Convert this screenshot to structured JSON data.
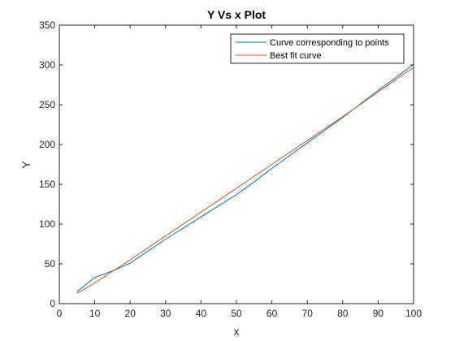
{
  "chart_data": {
    "type": "line",
    "title": "Y Vs x Plot",
    "xlabel": "x",
    "ylabel": "Y",
    "xlim": [
      0,
      100
    ],
    "ylim": [
      0,
      350
    ],
    "xticks": [
      0,
      10,
      20,
      30,
      40,
      50,
      60,
      70,
      80,
      90,
      100
    ],
    "yticks": [
      0,
      50,
      100,
      150,
      200,
      250,
      300,
      350
    ],
    "grid": false,
    "legend_location": "top-right",
    "series": [
      {
        "name": "Curve corresponding to points",
        "color": "#0072BD",
        "x": [
          5,
          10,
          15,
          20,
          25,
          30,
          35,
          40,
          45,
          50,
          55,
          60,
          65,
          70,
          75,
          80,
          85,
          90,
          95,
          100
        ],
        "y": [
          15,
          33,
          41,
          51,
          66,
          81,
          95,
          109,
          123,
          137,
          153,
          170,
          186,
          202,
          218,
          234,
          251,
          268,
          284,
          301
        ]
      },
      {
        "name": "Best fit curve",
        "color": "#D95319",
        "x": [
          5,
          10,
          20,
          30,
          40,
          50,
          60,
          70,
          80,
          90,
          100
        ],
        "y": [
          13,
          26,
          55,
          85,
          115,
          145,
          175,
          205,
          235,
          266,
          297
        ]
      }
    ]
  }
}
